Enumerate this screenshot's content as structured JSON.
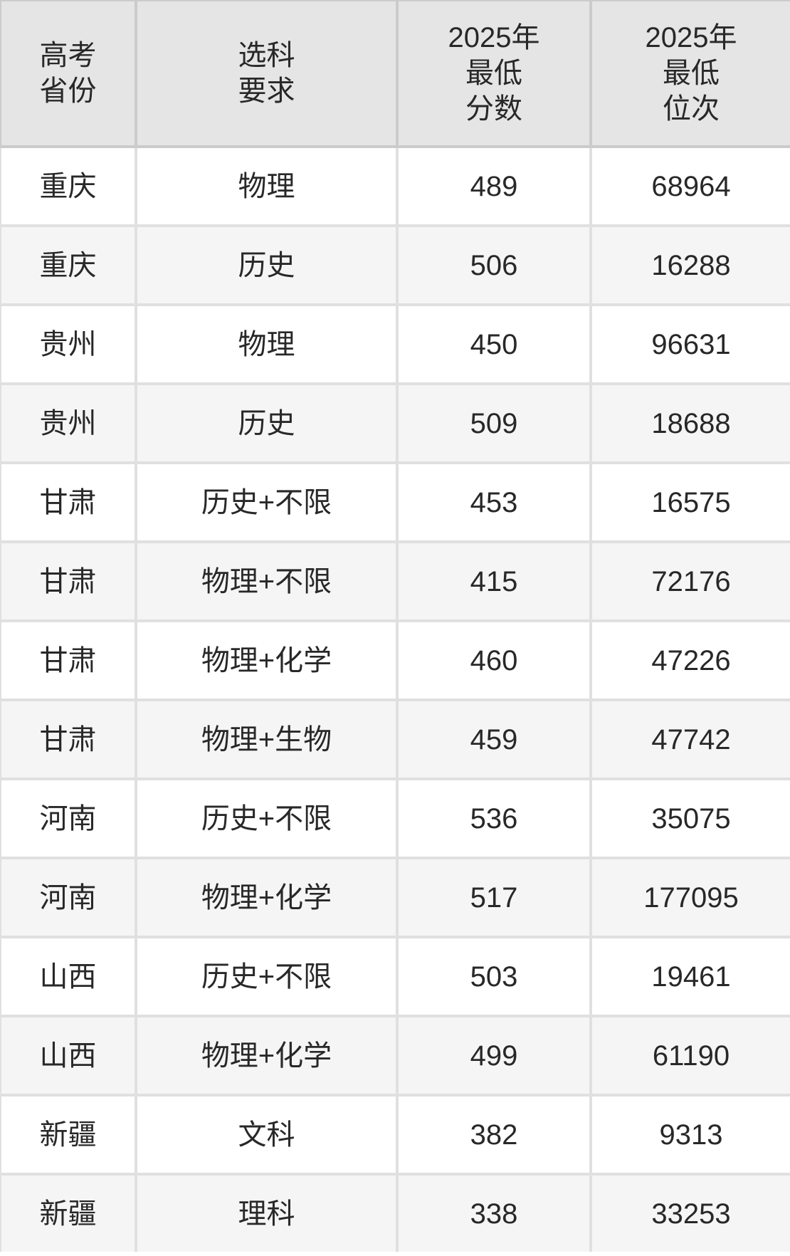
{
  "table": {
    "columns": [
      {
        "key": "province",
        "label": "高考\n省份"
      },
      {
        "key": "requirement",
        "label": "选科\n要求"
      },
      {
        "key": "min_score",
        "label": "2025年\n最低\n分数"
      },
      {
        "key": "min_rank",
        "label": "2025年\n最低\n位次"
      }
    ],
    "rows": [
      {
        "province": "重庆",
        "requirement": "物理",
        "min_score": "489",
        "min_rank": "68964"
      },
      {
        "province": "重庆",
        "requirement": "历史",
        "min_score": "506",
        "min_rank": "16288"
      },
      {
        "province": "贵州",
        "requirement": "物理",
        "min_score": "450",
        "min_rank": "96631"
      },
      {
        "province": "贵州",
        "requirement": "历史",
        "min_score": "509",
        "min_rank": "18688"
      },
      {
        "province": "甘肃",
        "requirement": "历史+不限",
        "min_score": "453",
        "min_rank": "16575"
      },
      {
        "province": "甘肃",
        "requirement": "物理+不限",
        "min_score": "415",
        "min_rank": "72176"
      },
      {
        "province": "甘肃",
        "requirement": "物理+化学",
        "min_score": "460",
        "min_rank": "47226"
      },
      {
        "province": "甘肃",
        "requirement": "物理+生物",
        "min_score": "459",
        "min_rank": "47742"
      },
      {
        "province": "河南",
        "requirement": "历史+不限",
        "min_score": "536",
        "min_rank": "35075"
      },
      {
        "province": "河南",
        "requirement": "物理+化学",
        "min_score": "517",
        "min_rank": "177095"
      },
      {
        "province": "山西",
        "requirement": "历史+不限",
        "min_score": "503",
        "min_rank": "19461"
      },
      {
        "province": "山西",
        "requirement": "物理+化学",
        "min_score": "499",
        "min_rank": "61190"
      },
      {
        "province": "新疆",
        "requirement": "文科",
        "min_score": "382",
        "min_rank": "9313"
      },
      {
        "province": "新疆",
        "requirement": "理科",
        "min_score": "338",
        "min_rank": "33253"
      }
    ]
  },
  "colors": {
    "header_bg": "#e5e5e5",
    "row_bg": "#ffffff",
    "row_alt_bg": "#f5f5f6",
    "header_border": "#cbcbcb",
    "body_border": "#e0e0e0",
    "text": "#282828"
  }
}
